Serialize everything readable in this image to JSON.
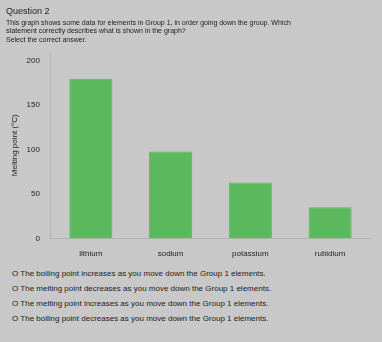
{
  "chart_data": {
    "type": "bar",
    "title": "Question 2",
    "subtitle": [
      "This graph shows some data for elements in Group 1, in order going down the group. Which",
      "statement correctly describes what is shown in the graph?",
      "Select the correct answer."
    ],
    "categories": [
      "lithium",
      "sodium",
      "potassium",
      "rubidium"
    ],
    "values": [
      180,
      98,
      63,
      35
    ],
    "color": "#5cb85c",
    "ylabel": "Melting point (°C)",
    "ylim": [
      0,
      210
    ],
    "yticks": [
      0,
      50,
      100,
      150,
      200
    ],
    "grid": false,
    "annotations": [
      "O The boiling point increases as you move down the Group 1 elements.",
      "O The melting point decreases as you move down the Group 1 elements.",
      "O The melting point increases as you move down the Group 1 elements.",
      "O The boiling point decreases as you move down the Group 1 elements."
    ]
  }
}
